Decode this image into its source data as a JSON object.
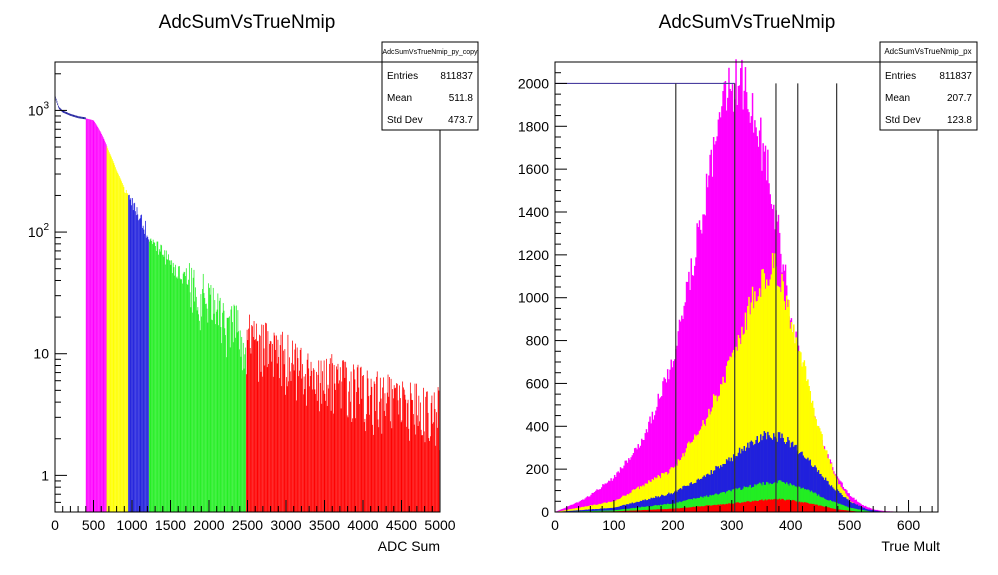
{
  "chart_data": [
    {
      "type": "bar",
      "title": "AdcSumVsTrueNmip",
      "xlabel": "ADC Sum",
      "ylabel": "",
      "log_y": true,
      "xlim": [
        0,
        5000
      ],
      "ylim": [
        0.5,
        2500
      ],
      "x_ticks": [
        "0",
        "500",
        "1000",
        "1500",
        "2000",
        "2500",
        "3000",
        "3500",
        "4000",
        "4500",
        "5000"
      ],
      "y_ticks": [
        {
          "value": 1,
          "label": "1"
        },
        {
          "value": 10,
          "label": "10"
        },
        {
          "value": 100,
          "label": "10",
          "exp": "2"
        },
        {
          "value": 1000,
          "label": "10",
          "exp": "3"
        }
      ],
      "stats_box": {
        "name": "AdcSumVsTrueNmip_py_copy",
        "rows": [
          {
            "label": "Entries",
            "value": "811837"
          },
          {
            "label": "Mean",
            "value": "511.8"
          },
          {
            "label": "Std Dev",
            "value": "473.7"
          }
        ]
      },
      "bands": [
        {
          "from": 400,
          "to": 670,
          "color": "#ff00ff"
        },
        {
          "from": 670,
          "to": 950,
          "color": "#ffff00"
        },
        {
          "from": 950,
          "to": 1220,
          "color": "#2020dd"
        },
        {
          "from": 1220,
          "to": 2480,
          "color": "#22ee22"
        },
        {
          "from": 2480,
          "to": 5000,
          "color": "#ff0000"
        }
      ],
      "curve_x": [
        0,
        50,
        100,
        200,
        300,
        400,
        500,
        600,
        700,
        800,
        900,
        1000,
        1100,
        1200,
        1300,
        1500,
        1700,
        2000,
        2300,
        2500,
        2800,
        3200,
        3600,
        4000,
        4500,
        5000
      ],
      "curve_y": [
        1300,
        1050,
        980,
        920,
        880,
        860,
        830,
        650,
        460,
        320,
        230,
        170,
        130,
        100,
        80,
        55,
        40,
        26,
        18,
        14,
        11,
        8,
        6.5,
        5,
        4,
        3.5
      ]
    },
    {
      "type": "area",
      "title": "AdcSumVsTrueNmip",
      "xlabel": "True Mult",
      "ylabel": "",
      "xlim": [
        0,
        650
      ],
      "ylim": [
        0,
        2100
      ],
      "x_ticks": [
        "0",
        "100",
        "200",
        "300",
        "400",
        "500",
        "600"
      ],
      "y_ticks": [
        "0",
        "200",
        "400",
        "600",
        "800",
        "1000",
        "1200",
        "1400",
        "1600",
        "1800",
        "2000"
      ],
      "stats_box": {
        "name": "AdcSumVsTrueNmip_px",
        "rows": [
          {
            "label": "Entries",
            "value": "811837"
          },
          {
            "label": "Mean",
            "value": "207.7"
          },
          {
            "label": "Std Dev",
            "value": "123.8"
          }
        ]
      },
      "hline": {
        "y": 2000,
        "x_from": 0,
        "x_to": 305
      },
      "vlines": [
        205,
        305,
        375,
        412,
        478
      ],
      "series": [
        {
          "color": "#ff00ff",
          "x": [
            0,
            50,
            100,
            150,
            200,
            230,
            260,
            280,
            300,
            320,
            340,
            360,
            380,
            400,
            420,
            440,
            460,
            480,
            500,
            520,
            540,
            560,
            600
          ],
          "y": [
            0,
            60,
            160,
            340,
            700,
            1100,
            1550,
            1850,
            2000,
            1970,
            1820,
            1600,
            1300,
            900,
            650,
            430,
            270,
            160,
            80,
            35,
            12,
            4,
            0
          ]
        },
        {
          "color": "#ffff00",
          "x": [
            0,
            100,
            200,
            250,
            300,
            330,
            350,
            370,
            380,
            400,
            420,
            440,
            460,
            480,
            500,
            520,
            540,
            600
          ],
          "y": [
            0,
            50,
            200,
            400,
            700,
            950,
            1080,
            1140,
            1120,
            900,
            700,
            470,
            280,
            140,
            55,
            15,
            3,
            0
          ]
        },
        {
          "color": "#2020dd",
          "x": [
            0,
            100,
            200,
            250,
            300,
            330,
            360,
            380,
            400,
            420,
            440,
            470,
            500,
            530,
            560
          ],
          "y": [
            0,
            20,
            90,
            160,
            250,
            320,
            360,
            350,
            320,
            270,
            210,
            120,
            50,
            12,
            0
          ]
        },
        {
          "color": "#22ee22",
          "x": [
            0,
            100,
            200,
            300,
            350,
            380,
            400,
            430,
            460,
            500,
            540
          ],
          "y": [
            0,
            8,
            40,
            100,
            130,
            140,
            130,
            100,
            60,
            20,
            0
          ]
        },
        {
          "color": "#ff0000",
          "x": [
            0,
            100,
            200,
            300,
            350,
            380,
            400,
            440,
            480,
            520
          ],
          "y": [
            0,
            3,
            15,
            40,
            55,
            60,
            55,
            35,
            12,
            0
          ]
        }
      ]
    }
  ]
}
